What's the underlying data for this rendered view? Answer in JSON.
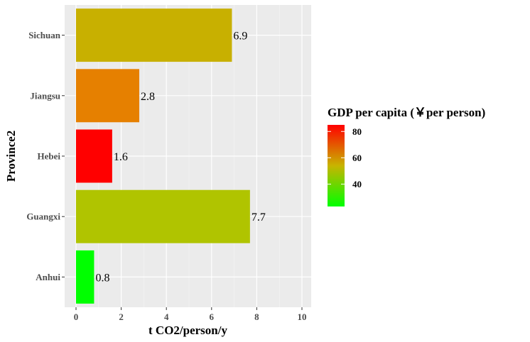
{
  "chart_data": {
    "type": "bar",
    "orientation": "horizontal",
    "categories": [
      "Anhui",
      "Guangxi",
      "Hebei",
      "Jiangsu",
      "Sichuan"
    ],
    "values": [
      0.8,
      7.7,
      1.6,
      2.8,
      6.9
    ],
    "data_labels": [
      "0.8",
      "7.7",
      "1.6",
      "2.8",
      "6.9"
    ],
    "xlabel": "t CO2/person/y",
    "ylabel": "Province2",
    "xlim": [
      0,
      10
    ],
    "x_ticks": [
      0,
      2,
      4,
      6,
      8,
      10
    ],
    "grid": true,
    "bar_colors": [
      "#00ff00",
      "#b0c400",
      "#ff0000",
      "#e68000",
      "#c8b000"
    ],
    "legend": {
      "title": "GDP per capita (￥per person)",
      "type": "colorbar",
      "placement": "right",
      "ticks": [
        40,
        60,
        80
      ],
      "tick_labels": [
        "40",
        "60",
        "80"
      ],
      "range": [
        23,
        85
      ],
      "low_color": "#00ff00",
      "mid_color": "#c8b400",
      "high_color": "#ff0000"
    }
  }
}
